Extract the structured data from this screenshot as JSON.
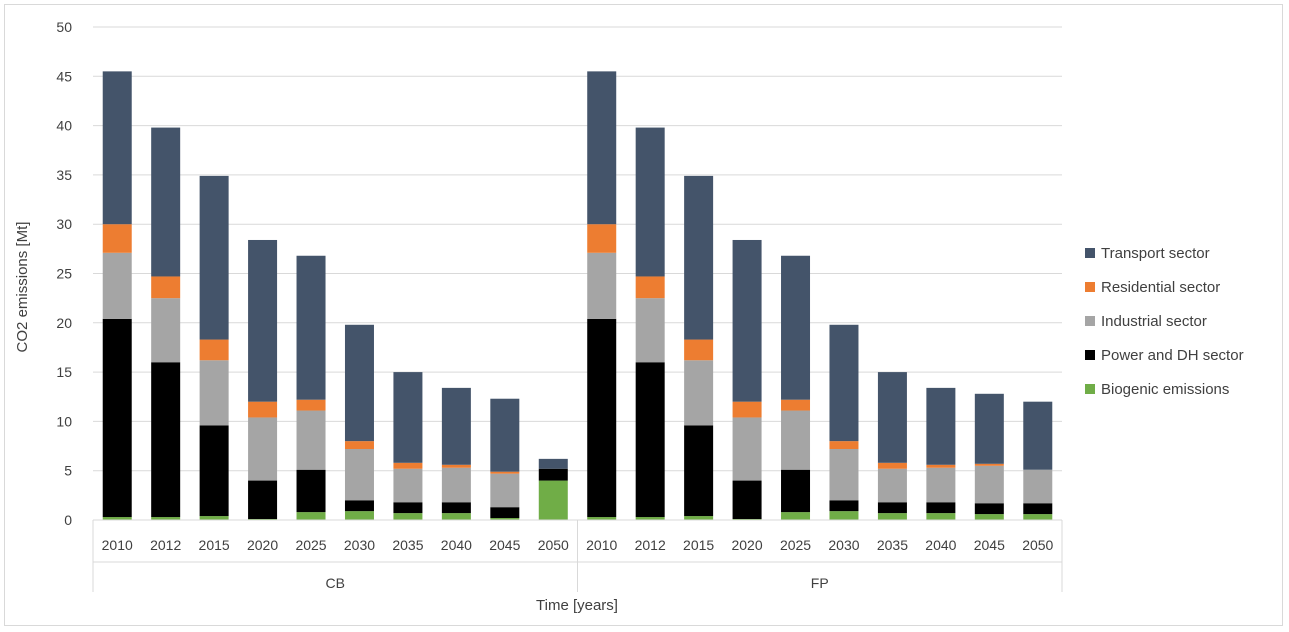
{
  "chart_data": {
    "type": "bar",
    "stacked": true,
    "title": "",
    "xlabel": "Time [years]",
    "ylabel": "CO2 emissions [Mt]",
    "ylim": [
      0,
      50
    ],
    "yticks": [
      0,
      5,
      10,
      15,
      20,
      25,
      30,
      35,
      40,
      45,
      50
    ],
    "grid": true,
    "legend_position": "right",
    "groups": [
      {
        "name": "CB",
        "categories": [
          "2010",
          "2012",
          "2015",
          "2020",
          "2025",
          "2030",
          "2035",
          "2040",
          "2045",
          "2050"
        ],
        "series": [
          {
            "name": "Biogenic emissions",
            "color": "#70ad47",
            "values": [
              0.3,
              0.3,
              0.4,
              0.1,
              0.8,
              0.9,
              0.7,
              0.7,
              0.2,
              4.0
            ]
          },
          {
            "name": "Power and DH sector",
            "color": "#000000",
            "values": [
              20.1,
              15.7,
              9.2,
              3.9,
              4.3,
              1.1,
              1.1,
              1.1,
              1.1,
              1.2
            ]
          },
          {
            "name": "Industrial sector",
            "color": "#a5a5a5",
            "values": [
              6.7,
              6.5,
              6.6,
              6.4,
              6.0,
              5.2,
              3.4,
              3.5,
              3.4,
              0.0
            ]
          },
          {
            "name": "Residential sector",
            "color": "#ed7d31",
            "values": [
              2.9,
              2.2,
              2.1,
              1.6,
              1.1,
              0.8,
              0.6,
              0.3,
              0.2,
              0.0
            ]
          },
          {
            "name": "Transport sector",
            "color": "#44546a",
            "values": [
              15.5,
              15.1,
              16.6,
              16.4,
              14.6,
              11.8,
              9.2,
              7.8,
              7.4,
              1.0
            ]
          }
        ]
      },
      {
        "name": "FP",
        "categories": [
          "2010",
          "2012",
          "2015",
          "2020",
          "2025",
          "2030",
          "2035",
          "2040",
          "2045",
          "2050"
        ],
        "series": [
          {
            "name": "Biogenic emissions",
            "color": "#70ad47",
            "values": [
              0.3,
              0.3,
              0.4,
              0.1,
              0.8,
              0.9,
              0.7,
              0.7,
              0.6,
              0.6
            ]
          },
          {
            "name": "Power and DH sector",
            "color": "#000000",
            "values": [
              20.1,
              15.7,
              9.2,
              3.9,
              4.3,
              1.1,
              1.1,
              1.1,
              1.1,
              1.1
            ]
          },
          {
            "name": "Industrial sector",
            "color": "#a5a5a5",
            "values": [
              6.7,
              6.5,
              6.6,
              6.4,
              6.0,
              5.2,
              3.4,
              3.5,
              3.8,
              3.4
            ]
          },
          {
            "name": "Residential sector",
            "color": "#ed7d31",
            "values": [
              2.9,
              2.2,
              2.1,
              1.6,
              1.1,
              0.8,
              0.6,
              0.3,
              0.2,
              0.0
            ]
          },
          {
            "name": "Transport sector",
            "color": "#44546a",
            "values": [
              15.5,
              15.1,
              16.6,
              16.4,
              14.6,
              11.8,
              9.2,
              7.8,
              7.1,
              6.9
            ]
          }
        ]
      }
    ],
    "legend": [
      {
        "name": "Transport sector",
        "color": "#44546a"
      },
      {
        "name": "Residential sector",
        "color": "#ed7d31"
      },
      {
        "name": "Industrial sector",
        "color": "#a5a5a5"
      },
      {
        "name": "Power and DH sector",
        "color": "#000000"
      },
      {
        "name": "Biogenic emissions",
        "color": "#70ad47"
      }
    ]
  }
}
